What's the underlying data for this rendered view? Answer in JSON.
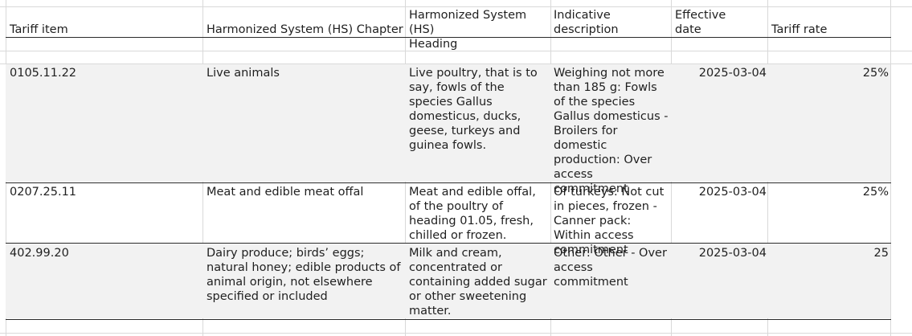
{
  "header": {
    "tariff_item": "Tariff item",
    "hs_chapter": "Harmonized System (HS) Chapter",
    "hs_heading_line1": "Harmonized System (HS)",
    "hs_heading_line2": "Heading",
    "indicative_line1": "Indicative",
    "indicative_line2": "description",
    "effective_line1": "Effective",
    "effective_line2": "date",
    "tariff_rate": "Tariff rate"
  },
  "rows": [
    {
      "tariff_item": "0105.11.22",
      "chapter": "Live animals",
      "heading": "Live poultry, that is to say, fowls of the species Gallus domesticus, ducks, geese, turkeys and guinea fowls.",
      "description": "Weighing not more than 185 g: Fowls of the species Gallus domesticus - Broilers for domestic production: Over access commitment",
      "effective_date": "2025-03-04",
      "rate": "25%"
    },
    {
      "tariff_item": "0207.25.11",
      "chapter": "Meat and edible meat offal",
      "heading": "Meat and edible offal, of the poultry of heading 01.05, fresh, chilled or frozen.",
      "description": "Of turkeys: Not cut in pieces, frozen - Canner pack: Within access commitment",
      "effective_date": "2025-03-04",
      "rate": "25%"
    },
    {
      "tariff_item": "402.99.20",
      "chapter": "Dairy produce; birds’ eggs; natural honey; edible products of animal origin, not elsewhere specified or included",
      "heading": "Milk and cream, concentrated or containing added sugar or other sweetening matter.",
      "description": "Other: Other - Over access commitment",
      "effective_date": "2025-03-04",
      "rate": "25"
    }
  ]
}
